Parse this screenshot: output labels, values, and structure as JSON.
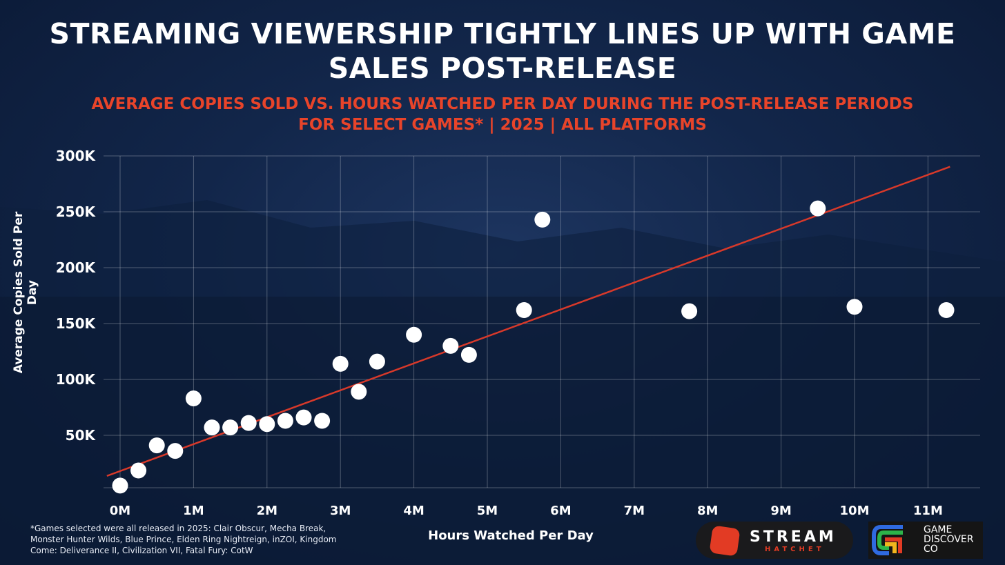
{
  "title": "STREAMING VIEWERSHIP TIGHTLY LINES UP WITH GAME SALES POST-RELEASE",
  "subtitle_line1": "AVERAGE COPIES SOLD VS. HOURS WATCHED PER DAY DURING THE POST-RELEASE PERIODS",
  "subtitle_line2": "FOR SELECT GAMES* | 2025 | ALL PLATFORMS",
  "footnote": "*Games selected were all released in 2025: Clair Obscur, Mecha Break, Monster Hunter Wilds, Blue Prince, Elden Ring Nightreign, inZOI, Kingdom Come: Deliverance II, Civilization VII, Fatal Fury: CotW",
  "logos": {
    "stream_hatchet": [
      "STREAM",
      "HATCHET"
    ],
    "game_discover_co": [
      "GAME",
      "DISCOVER",
      "CO"
    ]
  },
  "colors": {
    "title": "#ffffff",
    "subtitle": "#e8442a",
    "points": "#ffffff",
    "trendline": "#d8392a",
    "background": "#12264a"
  },
  "chart_data": {
    "type": "scatter",
    "xlabel": "Hours Watched Per Day",
    "ylabel": "Average Copies Sold Per Day",
    "xlim": [
      0,
      11
    ],
    "ylim": [
      0,
      300000
    ],
    "x_ticks": [
      0,
      1,
      2,
      3,
      4,
      5,
      6,
      7,
      8,
      9,
      10,
      11
    ],
    "x_tick_labels": [
      "0M",
      "1M",
      "2M",
      "3M",
      "4M",
      "5M",
      "6M",
      "7M",
      "8M",
      "9M",
      "10M",
      "11M"
    ],
    "y_ticks": [
      50000,
      100000,
      150000,
      200000,
      250000,
      300000
    ],
    "y_tick_labels": [
      "50K",
      "100K",
      "150K",
      "200K",
      "250K",
      "300K"
    ],
    "grid": true,
    "points": [
      [
        0,
        5000
      ],
      [
        0.25,
        18500
      ],
      [
        0.5,
        41000
      ],
      [
        0.75,
        36000
      ],
      [
        1,
        83000
      ],
      [
        1.25,
        57000
      ],
      [
        1.5,
        57000
      ],
      [
        1.75,
        61000
      ],
      [
        2,
        60000
      ],
      [
        2.25,
        63000
      ],
      [
        2.5,
        66000
      ],
      [
        2.75,
        63000
      ],
      [
        3,
        114000
      ],
      [
        3.25,
        89000
      ],
      [
        3.5,
        116000
      ],
      [
        4,
        140000
      ],
      [
        4.5,
        130000
      ],
      [
        4.75,
        122000
      ],
      [
        5.5,
        162000
      ],
      [
        5.75,
        243000
      ],
      [
        7.75,
        161000
      ],
      [
        9.5,
        253000
      ],
      [
        10,
        165000
      ],
      [
        11.25,
        162000
      ]
    ],
    "trendline": {
      "slope_per_million": 24100,
      "intercept": 18000,
      "x_range": [
        -0.18,
        11.3
      ]
    }
  }
}
